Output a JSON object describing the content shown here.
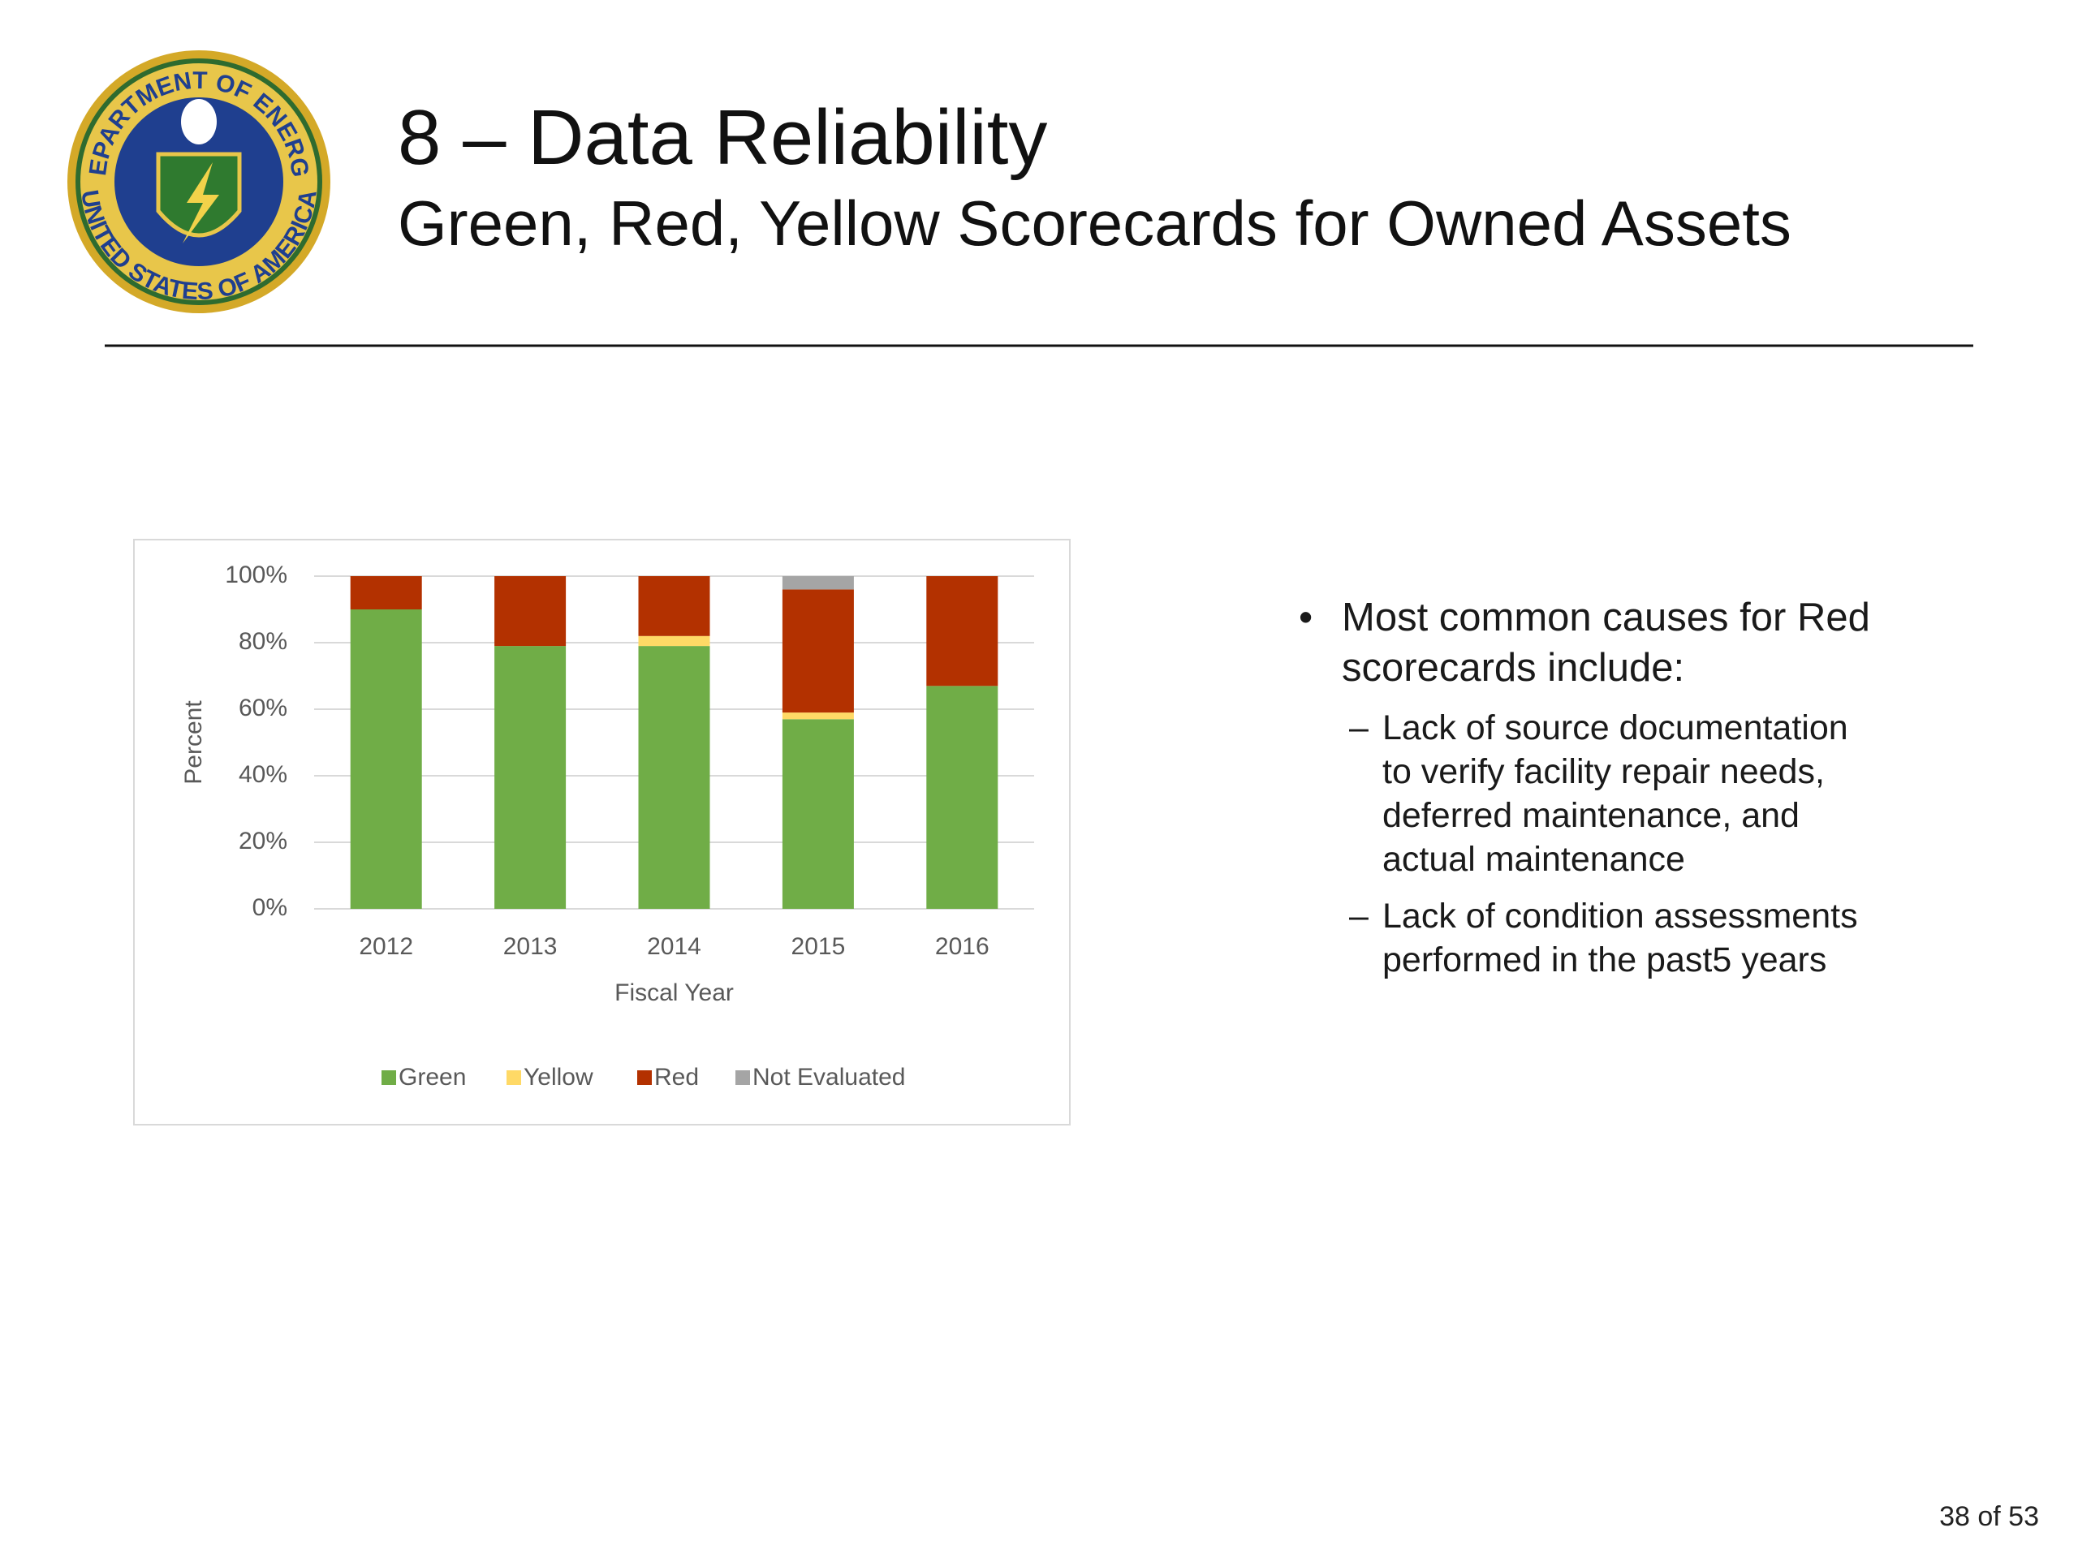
{
  "logo": {
    "top": "DEPARTMENT OF ENERGY",
    "bottom": "UNITED STATES OF AMERICA"
  },
  "header": {
    "title": "8 – Data Reliability",
    "subtitle": "Green, Red, Yellow Scorecards for Owned Assets"
  },
  "bullets": {
    "main": "Most common causes for Red scorecards include:",
    "sub": [
      "Lack of source documentation to verify facility repair needs, deferred maintenance, and actual maintenance",
      "Lack of condition assessments performed in the past5 years"
    ]
  },
  "footer": {
    "page": "38 of 53"
  },
  "chart_data": {
    "type": "stacked_bar",
    "x_label": "Fiscal Year",
    "y_label": "Percent",
    "categories": [
      "2012",
      "2013",
      "2014",
      "2015",
      "2016"
    ],
    "series": [
      {
        "name": "Green",
        "color": "#70ad47",
        "values": [
          90,
          79,
          79,
          57,
          67
        ]
      },
      {
        "name": "Yellow",
        "color": "#ffd966",
        "values": [
          0,
          0,
          3,
          2,
          0
        ]
      },
      {
        "name": "Red",
        "color": "#b33100",
        "values": [
          10,
          21,
          18,
          37,
          33
        ]
      },
      {
        "name": "Not Evaluated",
        "color": "#a5a5a5",
        "values": [
          0,
          0,
          0,
          4,
          0
        ]
      }
    ],
    "ylim": [
      0,
      100
    ],
    "yticks": [
      {
        "value": 0,
        "label": "0%"
      },
      {
        "value": 20,
        "label": "20%"
      },
      {
        "value": 40,
        "label": "40%"
      },
      {
        "value": 60,
        "label": "60%"
      },
      {
        "value": 80,
        "label": "80%"
      },
      {
        "value": 100,
        "label": "100%"
      }
    ],
    "grid": true,
    "legend": "bottom"
  }
}
